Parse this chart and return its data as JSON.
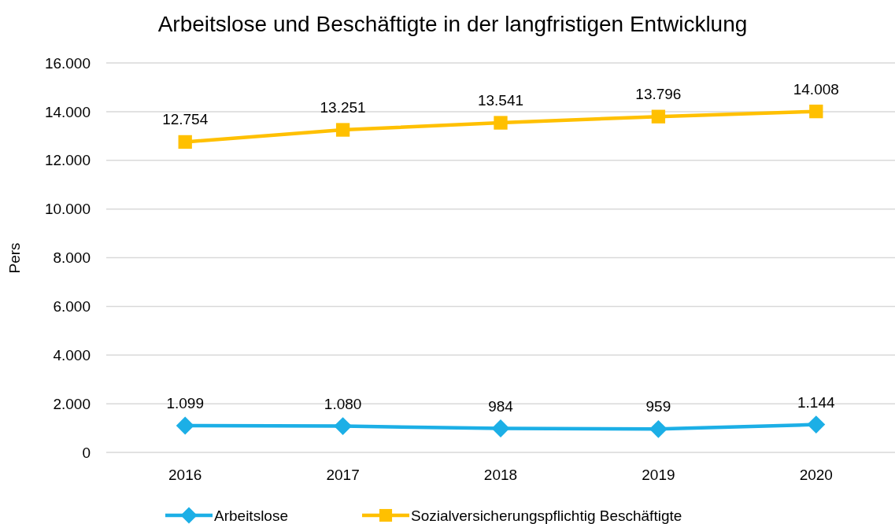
{
  "chart_data": {
    "type": "line",
    "title": "Arbeitslose und Beschäftigte in der langfristigen Entwicklung",
    "ylabel": "Pers",
    "categories": [
      "2016",
      "2017",
      "2018",
      "2019",
      "2020"
    ],
    "series": [
      {
        "name": "Arbeitslose",
        "color": "#1cafe6",
        "marker": "diamond",
        "values": [
          1099,
          1080,
          984,
          959,
          1144
        ],
        "value_labels": [
          "1.099",
          "1.080",
          "984",
          "959",
          "1.144"
        ]
      },
      {
        "name": "Sozialversicherungspflichtig Beschäftigte",
        "color": "#ffc000",
        "marker": "square",
        "values": [
          12754,
          13251,
          13541,
          13796,
          14008
        ],
        "value_labels": [
          "12.754",
          "13.251",
          "13.541",
          "13.796",
          "14.008"
        ]
      }
    ],
    "ylim": [
      0,
      16000
    ],
    "yticks": [
      {
        "value": 0,
        "label": "0"
      },
      {
        "value": 2000,
        "label": "2.000"
      },
      {
        "value": 4000,
        "label": "4.000"
      },
      {
        "value": 6000,
        "label": "6.000"
      },
      {
        "value": 8000,
        "label": "8.000"
      },
      {
        "value": 10000,
        "label": "10.000"
      },
      {
        "value": 12000,
        "label": "12.000"
      },
      {
        "value": 14000,
        "label": "14.000"
      },
      {
        "value": 16000,
        "label": "16.000"
      }
    ],
    "grid": "y",
    "legend": "bottom"
  }
}
